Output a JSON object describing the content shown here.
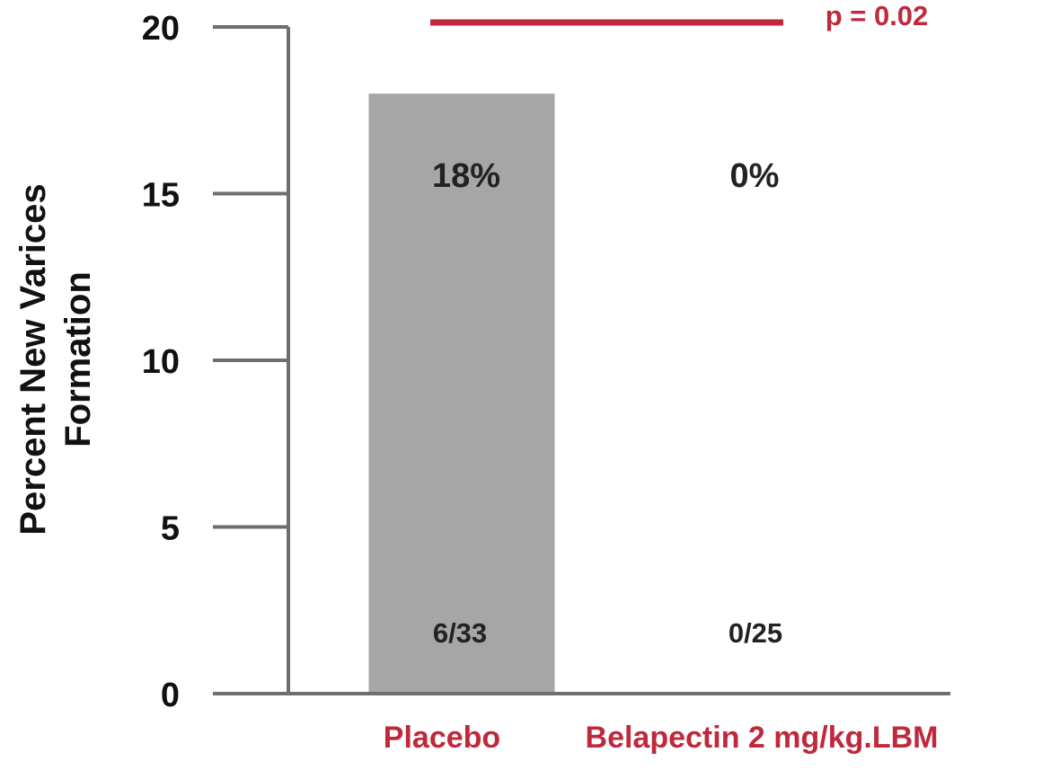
{
  "chart_data": {
    "type": "bar",
    "categories": [
      "Placebo",
      "Belapectin 2 mg/kg.LBM"
    ],
    "values": [
      18,
      0
    ],
    "value_labels": [
      "18%",
      "0%"
    ],
    "count_labels": [
      "6/33",
      "0/25"
    ],
    "title": "",
    "xlabel": "",
    "ylabel_lines": [
      "Percent New Varices",
      "Formation"
    ],
    "ylim": [
      0,
      20
    ],
    "yticks": [
      0,
      5,
      10,
      15,
      20
    ],
    "ytick_labels": [
      "0",
      "5",
      "10",
      "15",
      "20"
    ],
    "grid": false,
    "legend": false,
    "significance": {
      "label": "p = 0.02",
      "value": 20
    },
    "colors": {
      "bar": "#a6a6a6",
      "axis": "#6e6e6e",
      "accent": "#c0283c",
      "text": "#111111"
    }
  }
}
